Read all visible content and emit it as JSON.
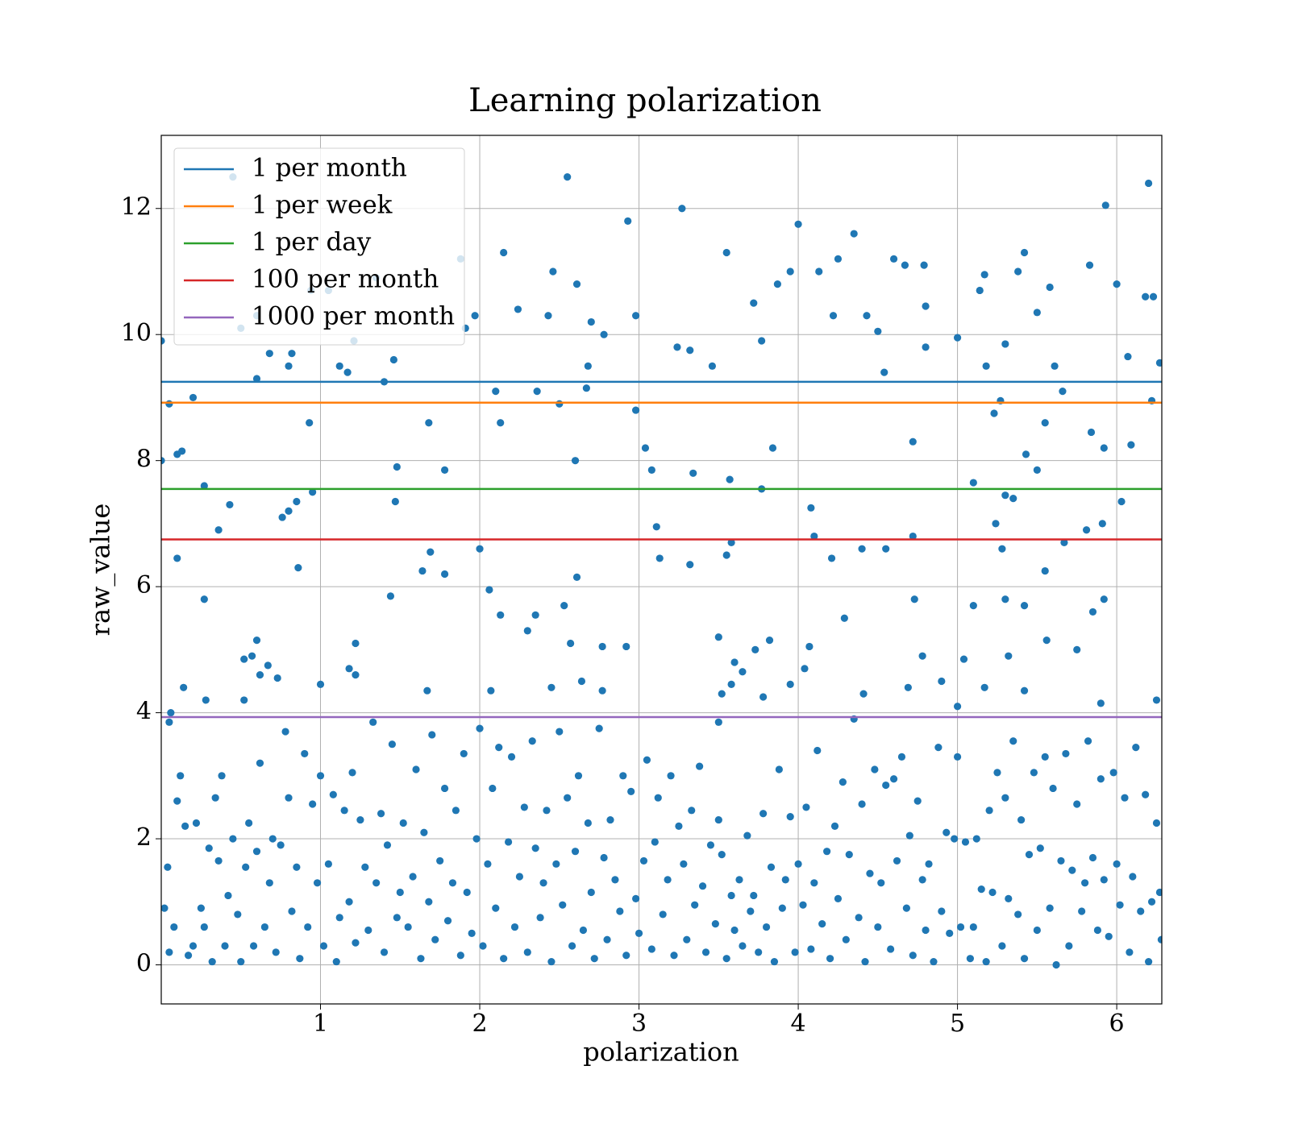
{
  "chart_data": {
    "type": "scatter",
    "title": "Learning polarization",
    "x_label": "polarization",
    "y_label": "raw_value",
    "xlim": [
      0,
      6.283
    ],
    "ylim": [
      -0.62,
      13.16
    ],
    "xticks": [
      1,
      2,
      3,
      4,
      5,
      6
    ],
    "yticks": [
      0,
      2,
      4,
      6,
      8,
      10,
      12
    ],
    "grid": true,
    "legend": "upper left",
    "color": "#1f77b4",
    "x": [
      0.0,
      0.0,
      0.05,
      0.1,
      0.13,
      0.2,
      0.1,
      0.27,
      0.27,
      0.36,
      0.43,
      0.45,
      0.5,
      0.6,
      0.6,
      0.68,
      0.76,
      0.8,
      0.85,
      0.86,
      0.8,
      0.82,
      0.93,
      0.95,
      0.94,
      1.05,
      1.12,
      1.17,
      1.21,
      1.35,
      1.4,
      1.46,
      1.48,
      1.47,
      1.44,
      1.64,
      1.69,
      1.68,
      1.78,
      1.78,
      1.91,
      1.97,
      1.88,
      2.1,
      2.13,
      2.15,
      2.24,
      2.36,
      2.43,
      2.46,
      2.55,
      2.61,
      2.67,
      2.7,
      2.68,
      2.78,
      2.5,
      2.6,
      2.61,
      2.0,
      2.06,
      2.13,
      2.3,
      2.35,
      2.53,
      2.57,
      2.93,
      2.98,
      2.98,
      3.04,
      3.08,
      3.11,
      3.13,
      3.27,
      3.24,
      3.32,
      3.34,
      3.32,
      3.46,
      3.55,
      3.57,
      3.58,
      3.55,
      3.72,
      3.77,
      3.77,
      3.84,
      3.87,
      3.95,
      4.0,
      4.08,
      4.1,
      4.13,
      4.22,
      4.25,
      4.35,
      4.43,
      4.5,
      4.54,
      4.6,
      4.67,
      4.79,
      4.8,
      4.8,
      4.72,
      4.72,
      4.55,
      4.4,
      4.21,
      4.29,
      4.73,
      5.0,
      5.1,
      5.14,
      5.17,
      5.18,
      5.3,
      5.38,
      5.42,
      5.5,
      5.58,
      5.61,
      5.66,
      5.23,
      5.27,
      5.3,
      5.35,
      5.43,
      5.5,
      5.55,
      5.24,
      5.28,
      5.3,
      5.42,
      5.55,
      5.67,
      5.81,
      5.85,
      5.92,
      5.83,
      5.93,
      6.0,
      6.07,
      6.2,
      6.18,
      6.23,
      6.27,
      6.22,
      6.09,
      6.03,
      5.92,
      5.84,
      5.91,
      6.25,
      5.9,
      5.75,
      5.56,
      5.42,
      5.32,
      5.17,
      5.04,
      5.0,
      5.1,
      4.78,
      4.69,
      4.9,
      4.41,
      4.04,
      4.07,
      3.95,
      3.82,
      3.78,
      3.73,
      3.6,
      3.65,
      3.5,
      3.52,
      3.58,
      3.5,
      2.92,
      2.77,
      2.77,
      2.64,
      2.45,
      2.07,
      1.22,
      1.22,
      1.18,
      1.0,
      0.6,
      0.62,
      0.67,
      0.73,
      0.52,
      0.57,
      0.52,
      0.28,
      0.14,
      0.06,
      0.05,
      1.67,
      0.02,
      0.04,
      0.05,
      0.08,
      0.1,
      0.12,
      0.15,
      0.17,
      0.2,
      0.22,
      0.25,
      0.27,
      0.3,
      0.32,
      0.34,
      0.36,
      0.38,
      0.4,
      0.42,
      0.45,
      0.48,
      0.5,
      0.53,
      0.55,
      0.58,
      0.6,
      0.62,
      0.65,
      0.68,
      0.7,
      0.72,
      0.75,
      0.78,
      0.8,
      0.82,
      0.85,
      0.87,
      0.9,
      0.92,
      0.95,
      0.98,
      1.0,
      1.02,
      1.05,
      1.08,
      1.1,
      1.12,
      1.15,
      1.18,
      1.2,
      1.22,
      1.25,
      1.28,
      1.3,
      1.33,
      1.35,
      1.38,
      1.4,
      1.42,
      1.45,
      1.48,
      1.5,
      1.52,
      1.55,
      1.58,
      1.6,
      1.63,
      1.65,
      1.68,
      1.7,
      1.72,
      1.75,
      1.78,
      1.8,
      1.83,
      1.85,
      1.88,
      1.9,
      1.92,
      1.95,
      1.98,
      2.0,
      2.02,
      2.05,
      2.08,
      2.1,
      2.12,
      2.15,
      2.18,
      2.2,
      2.22,
      2.25,
      2.28,
      2.3,
      2.33,
      2.35,
      2.38,
      2.4,
      2.42,
      2.45,
      2.48,
      2.5,
      2.52,
      2.55,
      2.58,
      2.6,
      2.62,
      2.65,
      2.68,
      2.7,
      2.72,
      2.75,
      2.78,
      2.8,
      2.82,
      2.85,
      2.88,
      2.9,
      2.92,
      2.95,
      2.98,
      3.0,
      3.03,
      3.05,
      3.08,
      3.1,
      3.12,
      3.15,
      3.18,
      3.2,
      3.22,
      3.25,
      3.28,
      3.3,
      3.33,
      3.35,
      3.38,
      3.4,
      3.42,
      3.45,
      3.48,
      3.5,
      3.52,
      3.55,
      3.58,
      3.6,
      3.63,
      3.65,
      3.68,
      3.7,
      3.72,
      3.75,
      3.78,
      3.8,
      3.83,
      3.85,
      3.88,
      3.9,
      3.92,
      3.95,
      3.98,
      4.0,
      4.03,
      4.05,
      4.08,
      4.1,
      4.12,
      4.15,
      4.18,
      4.2,
      4.23,
      4.25,
      4.28,
      4.3,
      4.32,
      4.35,
      4.38,
      4.4,
      4.42,
      4.45,
      4.48,
      4.5,
      4.52,
      4.55,
      4.58,
      4.6,
      4.62,
      4.65,
      4.68,
      4.7,
      4.72,
      4.75,
      4.78,
      4.8,
      4.82,
      4.85,
      4.88,
      4.9,
      4.93,
      4.95,
      4.98,
      5.0,
      5.02,
      5.05,
      5.08,
      5.1,
      5.12,
      5.15,
      5.18,
      5.2,
      5.22,
      5.25,
      5.28,
      5.3,
      5.32,
      5.35,
      5.38,
      5.4,
      5.42,
      5.45,
      5.48,
      5.5,
      5.52,
      5.55,
      5.58,
      5.6,
      5.62,
      5.65,
      5.68,
      5.7,
      5.72,
      5.75,
      5.78,
      5.8,
      5.82,
      5.85,
      5.88,
      5.9,
      5.92,
      5.95,
      5.98,
      6.0,
      6.02,
      6.05,
      6.08,
      6.1,
      6.12,
      6.15,
      6.18,
      6.2,
      6.22,
      6.25,
      6.27,
      6.28
    ],
    "values": [
      9.9,
      8.0,
      8.9,
      8.1,
      8.15,
      9.0,
      6.45,
      7.6,
      5.8,
      6.9,
      7.3,
      12.5,
      10.1,
      10.3,
      9.3,
      9.7,
      7.1,
      7.2,
      7.35,
      6.3,
      9.5,
      9.7,
      8.6,
      7.5,
      10.7,
      10.7,
      9.5,
      9.4,
      9.9,
      10.9,
      9.25,
      9.6,
      7.9,
      7.35,
      5.85,
      6.25,
      6.55,
      8.6,
      7.85,
      6.2,
      10.1,
      10.3,
      11.2,
      9.1,
      8.6,
      11.3,
      10.4,
      9.1,
      10.3,
      11.0,
      12.5,
      10.8,
      9.15,
      10.2,
      9.5,
      10.0,
      8.9,
      8.0,
      6.15,
      6.6,
      5.95,
      5.55,
      5.3,
      5.55,
      5.7,
      5.1,
      11.8,
      10.3,
      8.8,
      8.2,
      7.85,
      6.95,
      6.45,
      12.0,
      9.8,
      9.75,
      7.8,
      6.35,
      9.5,
      11.3,
      7.7,
      6.7,
      6.5,
      10.5,
      9.9,
      7.55,
      8.2,
      10.8,
      11.0,
      11.75,
      7.25,
      6.8,
      11.0,
      10.3,
      11.2,
      11.6,
      10.3,
      10.05,
      9.4,
      11.2,
      11.1,
      11.1,
      10.45,
      9.8,
      8.3,
      6.8,
      6.6,
      6.6,
      6.45,
      5.5,
      5.8,
      9.95,
      7.65,
      10.7,
      10.95,
      9.5,
      9.85,
      11.0,
      11.3,
      10.35,
      10.75,
      9.5,
      9.1,
      8.75,
      8.95,
      7.45,
      7.4,
      8.1,
      7.85,
      8.6,
      7.0,
      6.6,
      5.8,
      5.7,
      6.25,
      6.7,
      6.9,
      5.6,
      5.8,
      11.1,
      12.05,
      10.8,
      9.65,
      12.4,
      10.6,
      10.6,
      9.55,
      8.95,
      8.25,
      7.35,
      8.2,
      8.45,
      7.0,
      4.2,
      4.15,
      5.0,
      5.15,
      4.35,
      4.9,
      4.4,
      4.85,
      4.1,
      5.7,
      4.9,
      4.4,
      4.5,
      4.3,
      4.7,
      5.05,
      4.45,
      5.15,
      4.25,
      5.0,
      4.8,
      4.65,
      5.2,
      4.3,
      4.45,
      3.85,
      5.05,
      5.05,
      4.35,
      4.5,
      4.4,
      4.35,
      5.1,
      4.6,
      4.7,
      4.45,
      5.15,
      4.6,
      4.75,
      4.55,
      4.85,
      4.9,
      4.2,
      4.2,
      4.4,
      4.0,
      3.85,
      4.35,
      0.9,
      1.55,
      0.2,
      0.6,
      2.6,
      3.0,
      2.2,
      0.15,
      0.3,
      2.25,
      0.9,
      0.6,
      1.85,
      0.05,
      2.65,
      1.65,
      3.0,
      0.3,
      1.1,
      2.0,
      0.8,
      0.05,
      1.55,
      2.25,
      0.3,
      1.8,
      3.2,
      0.6,
      1.3,
      2.0,
      0.2,
      1.9,
      3.7,
      2.65,
      0.85,
      1.55,
      0.1,
      3.35,
      0.6,
      2.55,
      1.3,
      3.0,
      0.3,
      1.6,
      2.7,
      0.05,
      0.75,
      2.45,
      1.0,
      3.05,
      0.35,
      2.3,
      1.55,
      0.55,
      3.85,
      1.3,
      2.4,
      0.2,
      1.9,
      3.5,
      0.75,
      1.15,
      2.25,
      0.6,
      1.4,
      3.1,
      0.1,
      2.1,
      1.0,
      3.65,
      0.4,
      1.65,
      2.8,
      0.7,
      1.3,
      2.45,
      0.15,
      3.35,
      1.15,
      0.5,
      2.0,
      3.75,
      0.3,
      1.6,
      2.8,
      0.9,
      3.45,
      0.1,
      1.95,
      3.3,
      0.6,
      1.4,
      2.5,
      0.2,
      3.55,
      1.85,
      0.75,
      1.3,
      2.45,
      0.05,
      1.6,
      3.7,
      0.95,
      2.65,
      0.3,
      1.8,
      3.0,
      0.55,
      2.25,
      1.15,
      0.1,
      3.75,
      1.7,
      0.4,
      2.3,
      1.35,
      0.85,
      3.0,
      0.15,
      2.75,
      1.05,
      0.5,
      1.65,
      3.25,
      0.25,
      1.95,
      2.65,
      0.8,
      1.35,
      3.0,
      0.15,
      2.2,
      1.6,
      0.4,
      2.45,
      0.95,
      3.15,
      1.25,
      0.2,
      1.9,
      0.65,
      2.3,
      1.75,
      0.1,
      1.1,
      0.55,
      1.35,
      0.3,
      2.05,
      0.85,
      1.1,
      0.2,
      2.4,
      0.6,
      1.55,
      0.05,
      3.1,
      0.9,
      1.35,
      2.35,
      0.2,
      1.6,
      0.95,
      2.5,
      0.25,
      1.3,
      3.4,
      0.65,
      1.8,
      0.1,
      2.2,
      1.05,
      2.9,
      0.4,
      1.75,
      3.9,
      0.75,
      2.55,
      0.05,
      1.45,
      3.1,
      0.6,
      1.3,
      2.85,
      0.25,
      2.95,
      1.65,
      3.3,
      0.9,
      2.05,
      0.15,
      2.6,
      1.35,
      0.55,
      1.6,
      0.05,
      3.45,
      0.85,
      2.1,
      0.5,
      2.0,
      3.3,
      0.6,
      1.95,
      0.1,
      0.6,
      2.0,
      1.2,
      0.05,
      2.45,
      1.15,
      3.05,
      0.3,
      2.65,
      1.05,
      3.55,
      0.8,
      2.3,
      0.1,
      1.75,
      3.05,
      0.55,
      1.85,
      3.3,
      0.9,
      2.8,
      0.0,
      1.65,
      3.35,
      0.3,
      1.5,
      2.55,
      0.85,
      1.3,
      3.55,
      1.7,
      0.55,
      2.95,
      1.35,
      0.45,
      3.05,
      1.6,
      0.95,
      2.65,
      0.2,
      1.4,
      3.45,
      0.85,
      2.7,
      0.05,
      1.0,
      2.25,
      1.15,
      0.4
    ],
    "hlines": [
      {
        "name": "1 per month",
        "color": "#1f77b4",
        "value": 9.25
      },
      {
        "name": "1 per week",
        "color": "#ff7f0e",
        "value": 8.92
      },
      {
        "name": "1 per day",
        "color": "#2ca02c",
        "value": 7.55
      },
      {
        "name": "100 per month",
        "color": "#d62728",
        "value": 6.75
      },
      {
        "name": "1000 per month",
        "color": "#9467bd",
        "value": 3.93
      }
    ]
  }
}
